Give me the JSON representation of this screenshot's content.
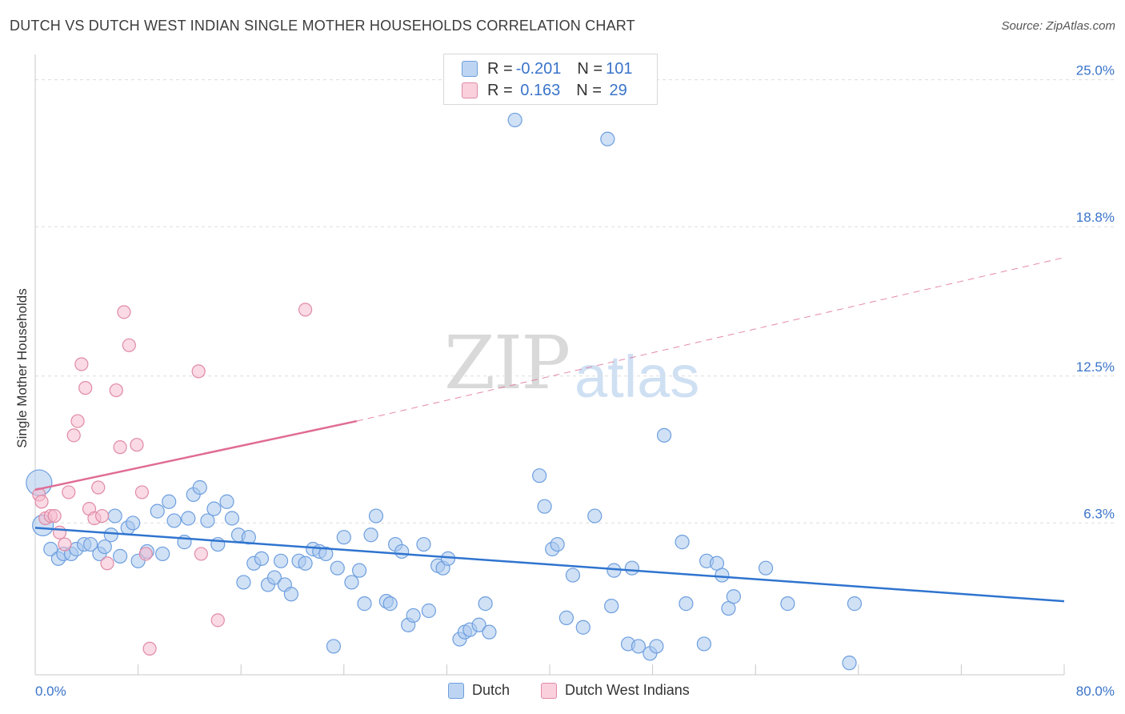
{
  "header": {
    "title": "DUTCH VS DUTCH WEST INDIAN SINGLE MOTHER HOUSEHOLDS CORRELATION CHART",
    "source": "Source: ZipAtlas.com"
  },
  "watermark": {
    "zip": "ZIP",
    "atlas": "atlas"
  },
  "legend": {
    "rows": [
      {
        "r_label": "R = ",
        "r_value": "-0.201",
        "n_label": "N = ",
        "n_value": "101"
      },
      {
        "r_label": "R = ",
        "r_value": " 0.163",
        "n_label": "N = ",
        "n_value": " 29"
      }
    ]
  },
  "colors": {
    "dutch_fill": "#a9c8ef",
    "dutch_stroke": "#6d9ede",
    "dutch_line": "#2f74cf",
    "dwi_fill": "#f6bccd",
    "dwi_stroke": "#e08aa6",
    "dwi_line": "#e06c95",
    "axis_label": "#3a74c9",
    "grid": "#dddddd"
  },
  "chart_data": {
    "type": "scatter",
    "title": "DUTCH VS DUTCH WEST INDIAN SINGLE MOTHER HOUSEHOLDS CORRELATION CHART",
    "ylabel": "Single Mother Households",
    "xlim": [
      0,
      80
    ],
    "ylim": [
      0,
      26
    ],
    "x_tick_labels": [
      "0.0%",
      "80.0%"
    ],
    "y_ticks": [
      6.3,
      12.5,
      18.8,
      25.0
    ],
    "y_tick_labels": [
      "6.3%",
      "12.5%",
      "18.8%",
      "25.0%"
    ],
    "grid": true,
    "legend_position": "bottom-center",
    "series": [
      {
        "name": "Dutch",
        "points": [
          [
            0.3,
            8.0
          ],
          [
            0.6,
            6.2
          ],
          [
            1.2,
            5.2
          ],
          [
            1.8,
            4.8
          ],
          [
            2.2,
            5.0
          ],
          [
            2.8,
            5.0
          ],
          [
            3.2,
            5.2
          ],
          [
            3.8,
            5.4
          ],
          [
            4.3,
            5.4
          ],
          [
            5.0,
            5.0
          ],
          [
            5.4,
            5.3
          ],
          [
            5.9,
            5.8
          ],
          [
            6.2,
            6.6
          ],
          [
            6.6,
            4.9
          ],
          [
            7.2,
            6.1
          ],
          [
            7.6,
            6.3
          ],
          [
            8.0,
            4.7
          ],
          [
            8.7,
            5.1
          ],
          [
            9.5,
            6.8
          ],
          [
            9.9,
            5.0
          ],
          [
            10.4,
            7.2
          ],
          [
            10.8,
            6.4
          ],
          [
            11.6,
            5.5
          ],
          [
            11.9,
            6.5
          ],
          [
            12.3,
            7.5
          ],
          [
            12.8,
            7.8
          ],
          [
            13.4,
            6.4
          ],
          [
            13.9,
            6.9
          ],
          [
            14.2,
            5.4
          ],
          [
            14.9,
            7.2
          ],
          [
            15.3,
            6.5
          ],
          [
            15.8,
            5.8
          ],
          [
            16.2,
            3.8
          ],
          [
            16.6,
            5.7
          ],
          [
            17.0,
            4.6
          ],
          [
            17.6,
            4.8
          ],
          [
            18.1,
            3.7
          ],
          [
            18.6,
            4.0
          ],
          [
            19.1,
            4.7
          ],
          [
            19.4,
            3.7
          ],
          [
            19.9,
            3.3
          ],
          [
            20.5,
            4.7
          ],
          [
            21.0,
            4.6
          ],
          [
            21.6,
            5.2
          ],
          [
            22.1,
            5.1
          ],
          [
            22.6,
            5.0
          ],
          [
            23.2,
            1.1
          ],
          [
            23.5,
            4.4
          ],
          [
            24.0,
            5.7
          ],
          [
            24.6,
            3.8
          ],
          [
            25.2,
            4.3
          ],
          [
            25.6,
            2.9
          ],
          [
            26.1,
            5.8
          ],
          [
            26.5,
            6.6
          ],
          [
            27.3,
            3.0
          ],
          [
            27.6,
            2.9
          ],
          [
            28.0,
            5.4
          ],
          [
            28.5,
            5.1
          ],
          [
            29.0,
            2.0
          ],
          [
            29.4,
            2.4
          ],
          [
            30.2,
            5.4
          ],
          [
            30.6,
            2.6
          ],
          [
            31.3,
            4.5
          ],
          [
            31.7,
            4.4
          ],
          [
            32.1,
            4.8
          ],
          [
            33.0,
            1.4
          ],
          [
            33.4,
            1.7
          ],
          [
            33.8,
            1.8
          ],
          [
            34.5,
            2.0
          ],
          [
            35.0,
            2.9
          ],
          [
            35.3,
            1.7
          ],
          [
            37.3,
            23.3
          ],
          [
            39.2,
            8.3
          ],
          [
            39.6,
            7.0
          ],
          [
            40.2,
            5.2
          ],
          [
            40.6,
            5.4
          ],
          [
            41.3,
            2.3
          ],
          [
            41.8,
            4.1
          ],
          [
            42.6,
            1.9
          ],
          [
            43.5,
            6.6
          ],
          [
            44.5,
            22.5
          ],
          [
            44.8,
            2.8
          ],
          [
            45.0,
            4.3
          ],
          [
            46.1,
            1.2
          ],
          [
            46.4,
            4.4
          ],
          [
            46.9,
            1.1
          ],
          [
            47.8,
            0.8
          ],
          [
            48.3,
            1.1
          ],
          [
            48.9,
            10.0
          ],
          [
            50.3,
            5.5
          ],
          [
            50.6,
            2.9
          ],
          [
            52.0,
            1.2
          ],
          [
            52.2,
            4.7
          ],
          [
            53.0,
            4.6
          ],
          [
            53.4,
            4.1
          ],
          [
            53.9,
            2.7
          ],
          [
            54.3,
            3.2
          ],
          [
            56.8,
            4.4
          ],
          [
            58.5,
            2.9
          ],
          [
            63.3,
            0.4
          ],
          [
            63.7,
            2.9
          ]
        ],
        "trend": {
          "x": [
            0,
            80
          ],
          "y": [
            6.1,
            3.0
          ]
        }
      },
      {
        "name": "Dutch West Indians",
        "points": [
          [
            0.3,
            7.5
          ],
          [
            0.5,
            7.2
          ],
          [
            0.8,
            6.5
          ],
          [
            1.2,
            6.6
          ],
          [
            1.5,
            6.6
          ],
          [
            1.9,
            5.9
          ],
          [
            2.3,
            5.4
          ],
          [
            2.6,
            7.6
          ],
          [
            3.0,
            10.0
          ],
          [
            3.3,
            10.6
          ],
          [
            3.6,
            13.0
          ],
          [
            3.9,
            12.0
          ],
          [
            4.2,
            6.9
          ],
          [
            4.6,
            6.5
          ],
          [
            4.9,
            7.8
          ],
          [
            5.2,
            6.6
          ],
          [
            5.6,
            4.6
          ],
          [
            6.3,
            11.9
          ],
          [
            6.6,
            9.5
          ],
          [
            6.9,
            15.2
          ],
          [
            7.3,
            13.8
          ],
          [
            7.9,
            9.6
          ],
          [
            8.3,
            7.6
          ],
          [
            8.6,
            5.0
          ],
          [
            8.9,
            1.0
          ],
          [
            12.7,
            12.7
          ],
          [
            12.9,
            5.0
          ],
          [
            14.2,
            2.2
          ],
          [
            21.0,
            15.3
          ]
        ],
        "trend_solid": {
          "x": [
            0,
            25
          ],
          "y": [
            7.7,
            10.6
          ]
        },
        "trend_dashed": {
          "x": [
            25,
            80
          ],
          "y": [
            10.6,
            17.5
          ]
        }
      }
    ]
  },
  "bottom_legend": {
    "dutch": "Dutch",
    "dwi": "Dutch West Indians"
  }
}
